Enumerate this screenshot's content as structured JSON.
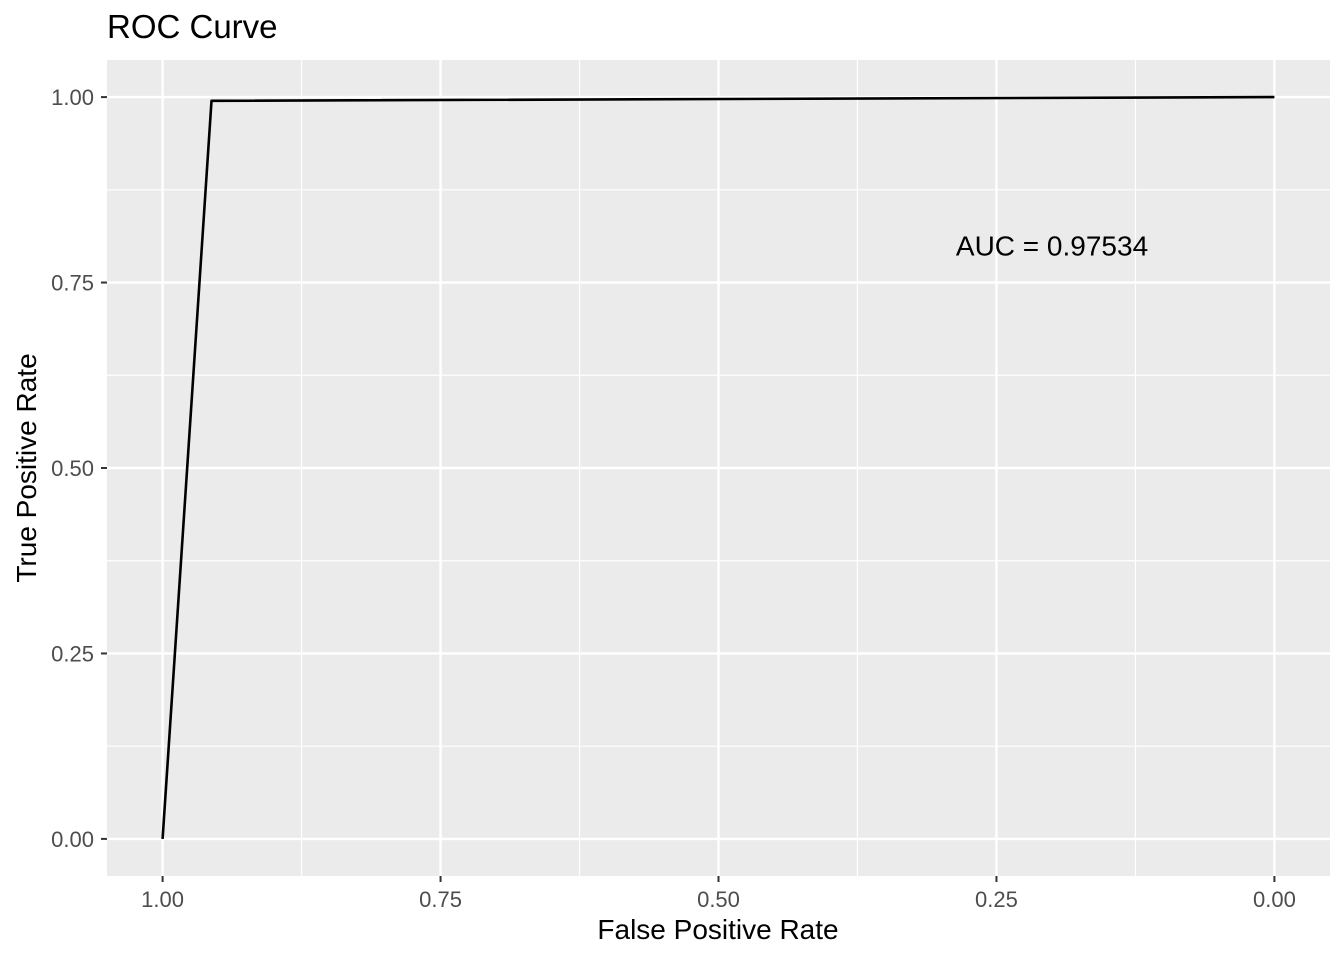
{
  "chart_data": {
    "type": "line",
    "title": "ROC Curve",
    "xlabel": "False Positive Rate",
    "ylabel": "True Positive Rate",
    "x_reversed": true,
    "xlim": [
      1.0,
      0.0
    ],
    "ylim": [
      0.0,
      1.0
    ],
    "xticks": [
      "1.00",
      "0.75",
      "0.50",
      "0.25",
      "0.00"
    ],
    "yticks": [
      "0.00",
      "0.25",
      "0.50",
      "0.75",
      "1.00"
    ],
    "grid": true,
    "series": [
      {
        "x": [
          1.0,
          0.956,
          0.0
        ],
        "y": [
          0.0,
          0.995,
          1.0
        ]
      }
    ],
    "annotation": "AUC = 0.97534",
    "annotation_at": {
      "x": 0.2,
      "y": 0.8
    },
    "colors": {
      "panel": "#ebebeb",
      "grid": "#ffffff",
      "line": "#000000"
    }
  }
}
